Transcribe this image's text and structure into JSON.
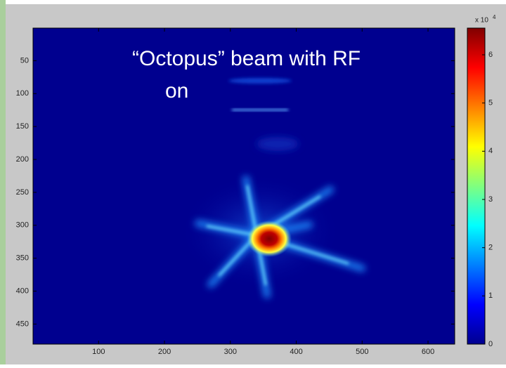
{
  "chart_data": {
    "type": "image",
    "annotation_lines": [
      "“Octopus” beam with RF",
      "on"
    ],
    "xlim": [
      0.5,
      640.5
    ],
    "xticks": [
      100,
      200,
      300,
      400,
      500,
      600
    ],
    "ylim": [
      0.5,
      480.5
    ],
    "y_reversed": true,
    "yticks": [
      50,
      100,
      150,
      200,
      250,
      300,
      350,
      400,
      450
    ],
    "colorbar": {
      "colormap": "jet",
      "clim": [
        0,
        65535
      ],
      "ticks": [
        0,
        {
          "value": 10000,
          "label": "1"
        },
        {
          "value": 20000,
          "label": "2"
        },
        {
          "value": 30000,
          "label": "3"
        },
        {
          "value": 40000,
          "label": "4"
        },
        {
          "value": 50000,
          "label": "5"
        },
        {
          "value": 60000,
          "label": "6"
        }
      ],
      "exponent_base": "x 10",
      "exponent": "4"
    }
  }
}
